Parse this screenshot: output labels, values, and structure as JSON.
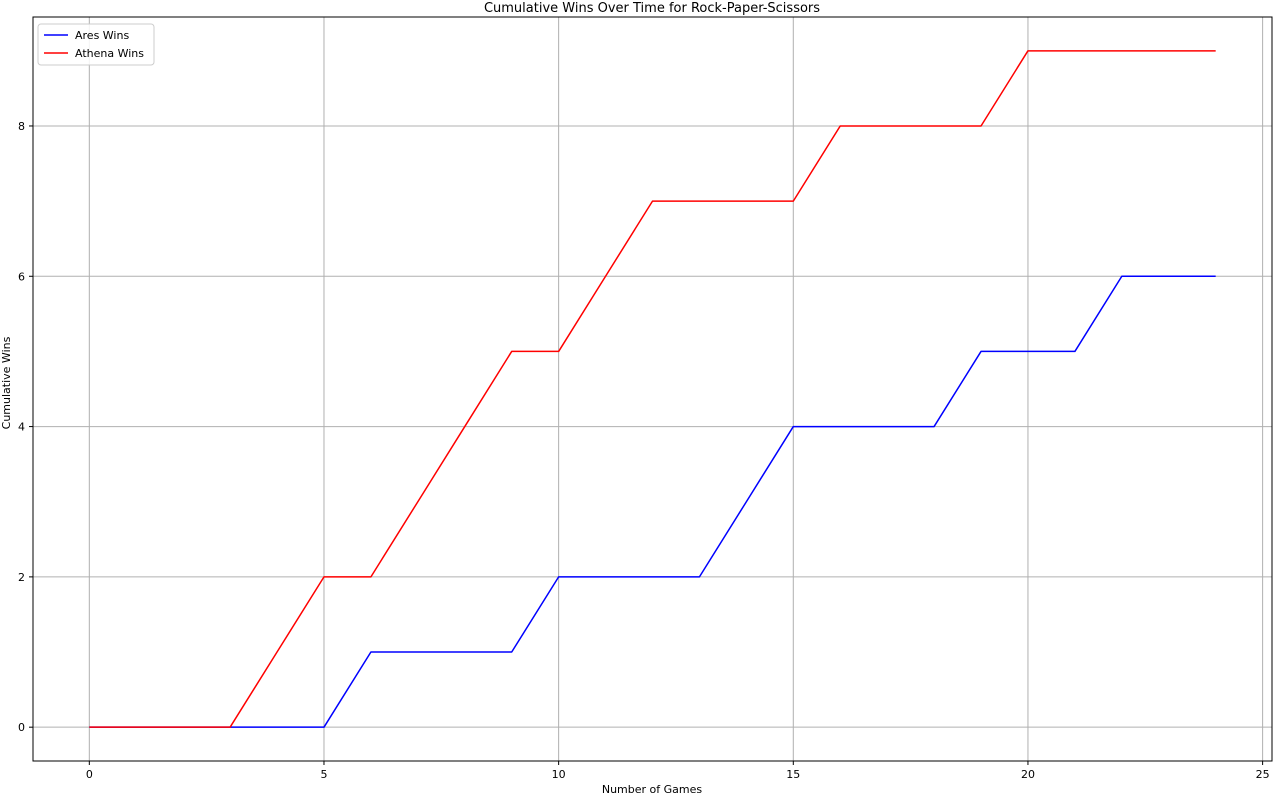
{
  "chart_data": {
    "type": "line",
    "title": "Cumulative Wins Over Time for Rock-Paper-Scissors",
    "xlabel": "Number of Games",
    "ylabel": "Cumulative Wins",
    "xlim": [
      -1.2,
      25.2
    ],
    "ylim": [
      -0.45,
      9.45
    ],
    "xticks": [
      0,
      5,
      10,
      15,
      20,
      25
    ],
    "yticks": [
      0,
      2,
      4,
      6,
      8
    ],
    "grid": true,
    "legend_position": "top-left",
    "x": [
      0,
      1,
      2,
      3,
      4,
      5,
      6,
      7,
      8,
      9,
      10,
      11,
      12,
      13,
      14,
      15,
      16,
      17,
      18,
      19,
      20,
      21,
      22,
      23,
      24
    ],
    "series": [
      {
        "name": "Ares Wins",
        "color": "#0000ff",
        "values": [
          0,
          0,
          0,
          0,
          0,
          0,
          1,
          1,
          1,
          1,
          2,
          2,
          2,
          2,
          3,
          4,
          4,
          4,
          4,
          5,
          5,
          5,
          6,
          6,
          6
        ]
      },
      {
        "name": "Athena Wins",
        "color": "#ff0000",
        "values": [
          0,
          0,
          0,
          0,
          1,
          2,
          2,
          3,
          4,
          5,
          5,
          6,
          7,
          7,
          7,
          7,
          8,
          8,
          8,
          8,
          9,
          9,
          9,
          9,
          9
        ]
      }
    ]
  }
}
